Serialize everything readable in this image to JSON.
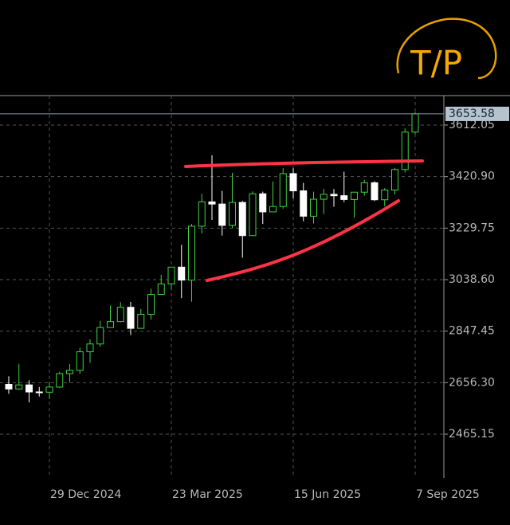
{
  "chart_data": {
    "type": "candlestick",
    "annotation": "T/P",
    "categories": [
      null,
      null,
      null,
      null,
      "29 Dec 2024",
      null,
      null,
      null,
      null,
      null,
      null,
      null,
      null,
      null,
      null,
      null,
      "23 Mar 2025",
      null,
      null,
      null,
      null,
      null,
      null,
      null,
      null,
      null,
      null,
      null,
      "15 Jun 2025",
      null,
      null,
      null,
      null,
      null,
      null,
      null,
      null,
      null,
      null,
      null,
      "7 Sep 2025"
    ],
    "open": [
      2650,
      2633,
      2648,
      2622,
      2621,
      2640,
      2690,
      2702,
      2771,
      2800,
      2861,
      2883,
      2936,
      2858,
      2910,
      2984,
      3023,
      3085,
      3037,
      3237,
      3327,
      3319,
      3240,
      3325,
      3202,
      3357,
      3290,
      3310,
      3432,
      3368,
      3274,
      3337,
      3355,
      3350,
      3336,
      3363,
      3398,
      3335,
      3371,
      3447,
      3586
    ],
    "high": [
      2680,
      2726,
      2665,
      2640,
      2660,
      2697,
      2725,
      2786,
      2817,
      2886,
      2943,
      2955,
      2956,
      2930,
      3005,
      3057,
      3086,
      3168,
      3245,
      3357,
      3500,
      3368,
      3435,
      3330,
      3366,
      3365,
      3403,
      3452,
      3452,
      3398,
      3365,
      3375,
      3375,
      3439,
      3363,
      3409,
      3404,
      3378,
      3453,
      3600,
      3660
    ],
    "low": [
      2615,
      2630,
      2583,
      2605,
      2596,
      2636,
      2657,
      2690,
      2730,
      2790,
      2860,
      2880,
      2833,
      2858,
      2890,
      2982,
      3000,
      2970,
      2957,
      3210,
      3260,
      3202,
      3230,
      3120,
      3200,
      3245,
      3290,
      3302,
      3340,
      3255,
      3247,
      3282,
      3309,
      3326,
      3268,
      3350,
      3330,
      3311,
      3355,
      3436,
      3580
    ],
    "close": [
      2633,
      2648,
      2622,
      2621,
      2640,
      2690,
      2702,
      2771,
      2800,
      2861,
      2883,
      2936,
      2858,
      2910,
      2984,
      3023,
      3085,
      3037,
      3237,
      3327,
      3319,
      3240,
      3325,
      3202,
      3357,
      3290,
      3310,
      3432,
      3368,
      3274,
      3337,
      3355,
      3350,
      3336,
      3363,
      3398,
      3335,
      3371,
      3447,
      3586,
      3653.58
    ],
    "up_color": "#3fd23f",
    "down_color": "#ffffff",
    "ylim": [
      2302.75,
      3721.35
    ],
    "yticks": [
      2465.15,
      {
        "value": 2656.3,
        "label": "2656.30"
      },
      2847.45,
      {
        "value": 3038.6,
        "label": "3038.60"
      },
      3229.75,
      {
        "value": 3420.9,
        "label": "3420.90"
      },
      3612.05
    ],
    "grid": true
  }
}
